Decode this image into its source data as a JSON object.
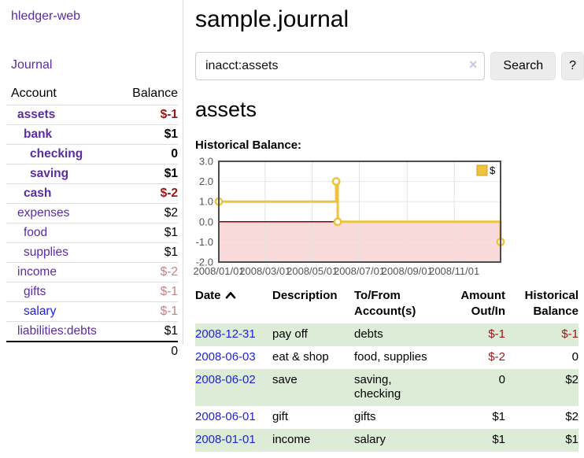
{
  "colors": {
    "purple_link": "#5a2ca0",
    "blue_link": "#2121dd",
    "negative_strong": "#9b1515",
    "negative_muted": "#c48282",
    "stripe_green": "#ddecd7",
    "series_yellow": "#edc240",
    "negative_region_pink": "#f9dada",
    "zero_line_red": "#8b0000"
  },
  "sidebar": {
    "brand": "hledger-web",
    "journal_link": "Journal",
    "headers": [
      "Account",
      "Balance"
    ],
    "rows": [
      {
        "account": "assets",
        "balance": "$-1",
        "indent": 1,
        "bold": true,
        "link": "purple",
        "balance_class": "neg"
      },
      {
        "account": "bank",
        "balance": "$1",
        "indent": 2,
        "bold": true,
        "link": "purple",
        "balance_class": ""
      },
      {
        "account": "checking",
        "balance": "0",
        "indent": 3,
        "bold": true,
        "link": "purple",
        "balance_class": ""
      },
      {
        "account": "saving",
        "balance": "$1",
        "indent": 3,
        "bold": true,
        "link": "purple",
        "balance_class": ""
      },
      {
        "account": "cash",
        "balance": "$-2",
        "indent": 2,
        "bold": true,
        "link": "purple",
        "balance_class": "neg"
      },
      {
        "account": "expenses",
        "balance": "$2",
        "indent": 1,
        "bold": false,
        "link": "purple",
        "balance_class": ""
      },
      {
        "account": "food",
        "balance": "$1",
        "indent": 2,
        "bold": false,
        "link": "purple",
        "balance_class": ""
      },
      {
        "account": "supplies",
        "balance": "$1",
        "indent": 2,
        "bold": false,
        "link": "purple",
        "balance_class": ""
      },
      {
        "account": "income",
        "balance": "$-2",
        "indent": 1,
        "bold": false,
        "link": "purple",
        "balance_class": "negmuted"
      },
      {
        "account": "gifts",
        "balance": "$-1",
        "indent": 2,
        "bold": false,
        "link": "purple",
        "balance_class": "negmuted"
      },
      {
        "account": "salary",
        "balance": "$-1",
        "indent": 2,
        "bold": false,
        "link": "blue",
        "balance_class": "negmuted"
      },
      {
        "account": "liabilities:debts",
        "balance": "$1",
        "indent": 1,
        "bold": false,
        "link": "purple",
        "balance_class": ""
      }
    ],
    "total": "0"
  },
  "main": {
    "title": "sample.journal",
    "search": {
      "value": "inacct:assets",
      "clear_icon": "×",
      "search_button": "Search",
      "help_button": "?"
    },
    "account_heading": "assets"
  },
  "chart_data": {
    "type": "line",
    "step": true,
    "title": "Historical Balance:",
    "series": [
      {
        "name": "$",
        "color": "#edc240",
        "points": [
          [
            "2008-01-01",
            1
          ],
          [
            "2008-06-01",
            2
          ],
          [
            "2008-06-03",
            0
          ],
          [
            "2008-12-31",
            -1
          ]
        ]
      }
    ],
    "ylim": [
      -2,
      3
    ],
    "xrange": [
      "2008-01-01",
      "2008-12-31"
    ],
    "yticks": [
      "3.0",
      "2.0",
      "1.0",
      "0.0",
      "-1.0",
      "-2.0"
    ],
    "xticks": [
      "2008/01/01",
      "2008/03/01",
      "2008/05/01",
      "2008/07/01",
      "2008/09/01",
      "2008/11/01"
    ],
    "legend": {
      "label": "$",
      "position": "top-right"
    },
    "grid": true,
    "negative_fill": "#f9dada",
    "zero_line_color": "#8b0000"
  },
  "register": {
    "headers": {
      "date": "Date",
      "description": "Description",
      "accounts": "To/From Account(s)",
      "amount": "Amount Out/In",
      "balance": "Historical Balance"
    },
    "rows": [
      {
        "date": "2008-12-31",
        "description": "pay off",
        "accounts": "debts",
        "amount": "$-1",
        "amount_class": "neg",
        "balance": "$-1",
        "balance_class": "neg"
      },
      {
        "date": "2008-06-03",
        "description": "eat & shop",
        "accounts": "food, supplies",
        "amount": "$-2",
        "amount_class": "neg",
        "balance": "0",
        "balance_class": ""
      },
      {
        "date": "2008-06-02",
        "description": "save",
        "accounts": "saving, checking",
        "amount": "0",
        "amount_class": "",
        "balance": "$2",
        "balance_class": ""
      },
      {
        "date": "2008-06-01",
        "description": "gift",
        "accounts": "gifts",
        "amount": "$1",
        "amount_class": "",
        "balance": "$2",
        "balance_class": ""
      },
      {
        "date": "2008-01-01",
        "description": "income",
        "accounts": "salary",
        "amount": "$1",
        "amount_class": "",
        "balance": "$1",
        "balance_class": ""
      }
    ]
  }
}
